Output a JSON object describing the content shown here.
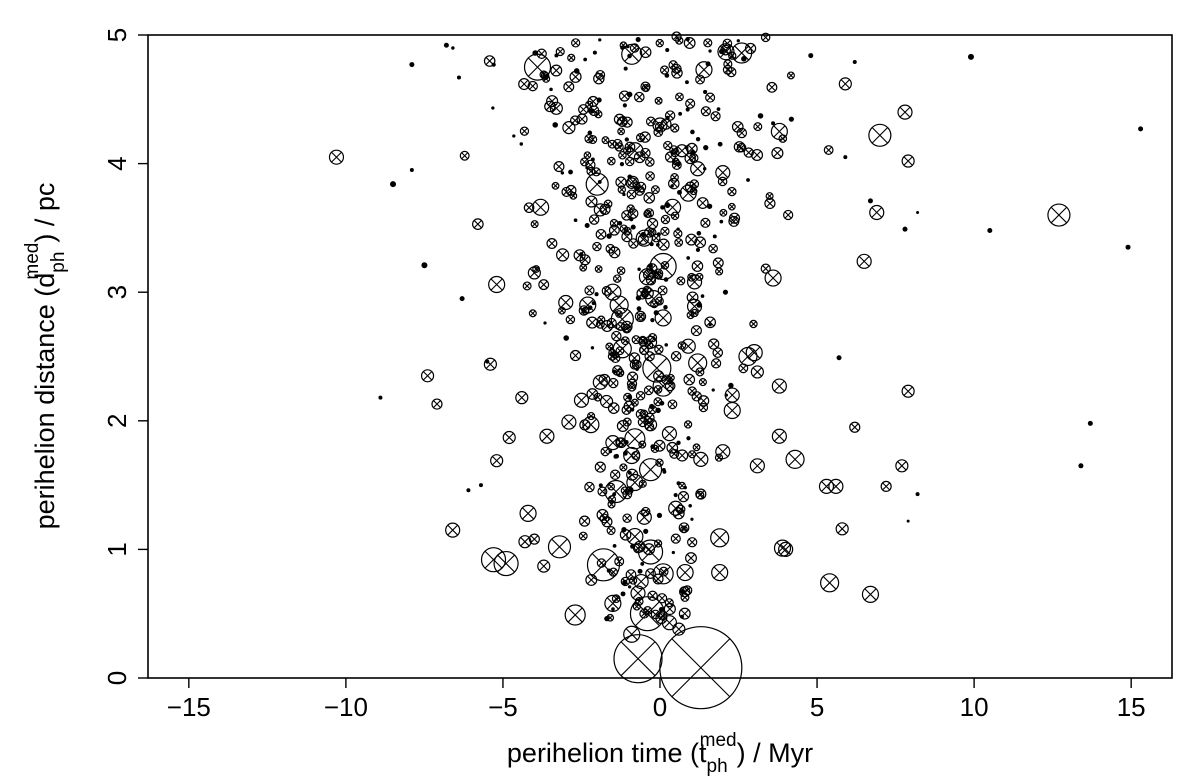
{
  "chart_data": {
    "type": "scatter",
    "title": "",
    "xlabel": {
      "pre": "perihelion time (t",
      "sup": "med",
      "sub": "ph",
      "post": ") / Myr"
    },
    "ylabel": {
      "pre": "perihelion distance (d",
      "sup": "med",
      "sub": "ph",
      "post": ") / pc"
    },
    "xlim": [
      -16.3,
      16.3
    ],
    "ylim": [
      0,
      5
    ],
    "xticks": [
      -15,
      -10,
      -5,
      0,
      5,
      10,
      15
    ],
    "yticks": [
      0,
      1,
      2,
      3,
      4,
      5
    ],
    "xtick_labels": [
      "−15",
      "−10",
      "−5",
      "0",
      "5",
      "10",
      "15"
    ],
    "ytick_labels": [
      "0",
      "1",
      "2",
      "3",
      "4",
      "5"
    ],
    "grid": false,
    "legend": "none",
    "marker": "circle-with-x",
    "color": "#000000",
    "points": [
      {
        "x": 1.3,
        "y": 0.08,
        "s": 41
      },
      {
        "x": -0.7,
        "y": 0.15,
        "s": 24
      },
      {
        "x": -0.4,
        "y": 0.5,
        "s": 17
      },
      {
        "x": 0.3,
        "y": 0.43,
        "s": 7
      },
      {
        "x": 0.6,
        "y": 0.38,
        "s": 6
      },
      {
        "x": -0.9,
        "y": 0.34,
        "s": 8
      },
      {
        "x": -2.7,
        "y": 0.49,
        "s": 10
      },
      {
        "x": -1.5,
        "y": 0.58,
        "s": 8
      },
      {
        "x": -0.7,
        "y": 0.66,
        "s": 7
      },
      {
        "x": -0.6,
        "y": 0.75,
        "s": 7
      },
      {
        "x": 0.1,
        "y": 0.81,
        "s": 10
      },
      {
        "x": 0.8,
        "y": 0.82,
        "s": 8
      },
      {
        "x": 1.9,
        "y": 0.82,
        "s": 8
      },
      {
        "x": 5.4,
        "y": 0.74,
        "s": 9
      },
      {
        "x": 6.7,
        "y": 0.65,
        "s": 8
      },
      {
        "x": -5.3,
        "y": 0.92,
        "s": 12
      },
      {
        "x": -4.9,
        "y": 0.89,
        "s": 12
      },
      {
        "x": -1.8,
        "y": 0.88,
        "s": 16
      },
      {
        "x": -3.2,
        "y": 1.02,
        "s": 11
      },
      {
        "x": -0.3,
        "y": 0.98,
        "s": 12
      },
      {
        "x": -0.8,
        "y": 1.1,
        "s": 8
      },
      {
        "x": 1.9,
        "y": 1.09,
        "s": 9
      },
      {
        "x": 3.9,
        "y": 1.01,
        "s": 8
      },
      {
        "x": 4.0,
        "y": 1.0,
        "s": 7
      },
      {
        "x": -6.6,
        "y": 1.15,
        "s": 7
      },
      {
        "x": -4.3,
        "y": 1.06,
        "s": 6
      },
      {
        "x": -4.0,
        "y": 1.08,
        "s": 5
      },
      {
        "x": -3.7,
        "y": 0.87,
        "s": 6
      },
      {
        "x": -4.2,
        "y": 1.28,
        "s": 8
      },
      {
        "x": 5.8,
        "y": 1.16,
        "s": 6
      },
      {
        "x": -1.4,
        "y": 1.45,
        "s": 11
      },
      {
        "x": -0.8,
        "y": 1.52,
        "s": 8
      },
      {
        "x": -0.3,
        "y": 1.62,
        "s": 11
      },
      {
        "x": -5.2,
        "y": 1.69,
        "s": 6
      },
      {
        "x": -4.8,
        "y": 1.87,
        "s": 6
      },
      {
        "x": -3.6,
        "y": 1.88,
        "s": 7
      },
      {
        "x": -2.9,
        "y": 1.99,
        "s": 7
      },
      {
        "x": -2.2,
        "y": 1.97,
        "s": 8
      },
      {
        "x": -1.5,
        "y": 1.83,
        "s": 7
      },
      {
        "x": -0.8,
        "y": 1.86,
        "s": 10
      },
      {
        "x": -0.9,
        "y": 1.73,
        "s": 8
      },
      {
        "x": 0.3,
        "y": 1.9,
        "s": 7
      },
      {
        "x": 1.3,
        "y": 1.7,
        "s": 7
      },
      {
        "x": 2.3,
        "y": 2.08,
        "s": 8
      },
      {
        "x": 3.1,
        "y": 1.65,
        "s": 7
      },
      {
        "x": 3.8,
        "y": 1.88,
        "s": 7
      },
      {
        "x": 4.3,
        "y": 1.7,
        "s": 9
      },
      {
        "x": 5.3,
        "y": 1.49,
        "s": 7
      },
      {
        "x": 5.6,
        "y": 1.49,
        "s": 7
      },
      {
        "x": 7.2,
        "y": 1.49,
        "s": 5
      },
      {
        "x": 7.7,
        "y": 1.65,
        "s": 6
      },
      {
        "x": 7.9,
        "y": 2.23,
        "s": 6
      },
      {
        "x": 6.2,
        "y": 1.95,
        "s": 5
      },
      {
        "x": -7.4,
        "y": 2.35,
        "s": 6
      },
      {
        "x": -7.1,
        "y": 2.13,
        "s": 5
      },
      {
        "x": -5.4,
        "y": 2.44,
        "s": 6
      },
      {
        "x": -4.4,
        "y": 2.18,
        "s": 6
      },
      {
        "x": -2.5,
        "y": 2.16,
        "s": 7
      },
      {
        "x": -1.2,
        "y": 2.56,
        "s": 9
      },
      {
        "x": -0.1,
        "y": 2.41,
        "s": 14
      },
      {
        "x": 0.1,
        "y": 2.27,
        "s": 10
      },
      {
        "x": 0.9,
        "y": 2.58,
        "s": 7
      },
      {
        "x": 1.2,
        "y": 2.45,
        "s": 9
      },
      {
        "x": 2.3,
        "y": 2.2,
        "s": 7
      },
      {
        "x": 2.8,
        "y": 2.5,
        "s": 9
      },
      {
        "x": 3.0,
        "y": 2.53,
        "s": 8
      },
      {
        "x": 3.8,
        "y": 2.27,
        "s": 7
      },
      {
        "x": -5.2,
        "y": 3.06,
        "s": 8
      },
      {
        "x": -3.0,
        "y": 2.92,
        "s": 7
      },
      {
        "x": -2.3,
        "y": 2.9,
        "s": 8
      },
      {
        "x": -1.2,
        "y": 2.79,
        "s": 11
      },
      {
        "x": -1.3,
        "y": 2.9,
        "s": 9
      },
      {
        "x": -0.2,
        "y": 2.95,
        "s": 8
      },
      {
        "x": 0.1,
        "y": 2.8,
        "s": 8
      },
      {
        "x": 1.1,
        "y": 2.89,
        "s": 7
      },
      {
        "x": 0.1,
        "y": 3.2,
        "s": 13
      },
      {
        "x": -0.4,
        "y": 3.12,
        "s": 8
      },
      {
        "x": -0.5,
        "y": 3.42,
        "s": 8
      },
      {
        "x": -1.5,
        "y": 3.0,
        "s": 8
      },
      {
        "x": 3.6,
        "y": 3.11,
        "s": 8
      },
      {
        "x": 6.5,
        "y": 3.24,
        "s": 7
      },
      {
        "x": 12.7,
        "y": 3.6,
        "s": 11
      },
      {
        "x": 6.9,
        "y": 3.62,
        "s": 7
      },
      {
        "x": 0.4,
        "y": 3.66,
        "s": 8
      },
      {
        "x": 0.9,
        "y": 3.77,
        "s": 8
      },
      {
        "x": -3.8,
        "y": 3.66,
        "s": 8
      },
      {
        "x": -2.0,
        "y": 3.84,
        "s": 11
      },
      {
        "x": -1.9,
        "y": 3.64,
        "s": 6
      },
      {
        "x": -3.1,
        "y": 3.29,
        "s": 6
      },
      {
        "x": -10.3,
        "y": 4.05,
        "s": 7
      },
      {
        "x": -0.8,
        "y": 4.1,
        "s": 8
      },
      {
        "x": 0.0,
        "y": 4.3,
        "s": 7
      },
      {
        "x": 1.2,
        "y": 3.96,
        "s": 7
      },
      {
        "x": 2.0,
        "y": 3.93,
        "s": 7
      },
      {
        "x": 3.8,
        "y": 4.25,
        "s": 8
      },
      {
        "x": 7.0,
        "y": 4.22,
        "s": 11
      },
      {
        "x": 7.8,
        "y": 4.4,
        "s": 7
      },
      {
        "x": 7.9,
        "y": 4.02,
        "s": 6
      },
      {
        "x": -3.9,
        "y": 4.75,
        "s": 13
      },
      {
        "x": -0.9,
        "y": 4.85,
        "s": 10
      },
      {
        "x": 1.4,
        "y": 4.73,
        "s": 8
      },
      {
        "x": 2.1,
        "y": 4.87,
        "s": 8
      },
      {
        "x": 2.6,
        "y": 4.86,
        "s": 10
      },
      {
        "x": 5.9,
        "y": 4.62,
        "s": 6
      },
      {
        "x": -0.5,
        "y": 1.25,
        "s": 7
      },
      {
        "x": 0.5,
        "y": 1.32,
        "s": 7
      },
      {
        "x": 2.0,
        "y": 1.76,
        "s": 7
      },
      {
        "x": -1.9,
        "y": 2.3,
        "s": 7
      },
      {
        "x": 1.1,
        "y": 3.08,
        "s": 7
      },
      {
        "x": -4.0,
        "y": 3.15,
        "s": 6
      },
      {
        "x": 3.1,
        "y": 2.38,
        "s": 6
      },
      {
        "x": -1.7,
        "y": 2.15,
        "s": 6
      },
      {
        "x": -0.3,
        "y": 2.61,
        "s": 6
      },
      {
        "x": 0.7,
        "y": 4.1,
        "s": 6
      },
      {
        "x": -3.3,
        "y": 4.43,
        "s": 6
      },
      {
        "x": -2.9,
        "y": 4.28,
        "s": 6
      },
      {
        "x": 3.5,
        "y": 3.69,
        "s": 5
      },
      {
        "x": -0.3,
        "y": 1.97,
        "s": 6
      },
      {
        "x": -2.4,
        "y": 1.22,
        "s": 5
      },
      {
        "x": 1.3,
        "y": 1.43,
        "s": 5
      },
      {
        "x": -1.9,
        "y": 1.64,
        "s": 5
      },
      {
        "x": -5.7,
        "y": 1.5,
        "s": 2
      },
      {
        "x": -6.1,
        "y": 1.46,
        "s": 2
      },
      {
        "x": -8.9,
        "y": 2.18,
        "s": 2
      },
      {
        "x": -8.5,
        "y": 3.84,
        "s": 3
      },
      {
        "x": -7.5,
        "y": 3.21,
        "s": 3
      },
      {
        "x": 10.5,
        "y": 3.48,
        "s": 2.5
      },
      {
        "x": 14.9,
        "y": 3.35,
        "s": 2.5
      },
      {
        "x": 13.4,
        "y": 1.65,
        "s": 2.5
      },
      {
        "x": 13.7,
        "y": 1.98,
        "s": 2.5
      },
      {
        "x": 15.3,
        "y": 4.27,
        "s": 2.5
      },
      {
        "x": 9.9,
        "y": 4.83,
        "s": 3
      },
      {
        "x": 8.2,
        "y": 3.62,
        "s": 1.5
      },
      {
        "x": 8.2,
        "y": 1.43,
        "s": 2
      },
      {
        "x": 7.9,
        "y": 1.22,
        "s": 1.5
      },
      {
        "x": -7.9,
        "y": 4.77,
        "s": 2.5
      },
      {
        "x": -6.8,
        "y": 4.92,
        "s": 2.5
      },
      {
        "x": -6.4,
        "y": 4.67,
        "s": 2
      },
      {
        "x": -7.9,
        "y": 3.95,
        "s": 2
      },
      {
        "x": -6.3,
        "y": 2.95,
        "s": 2.5
      },
      {
        "x": -5.5,
        "y": 2.46,
        "s": 2
      },
      {
        "x": 7.8,
        "y": 3.49,
        "s": 2.5
      },
      {
        "x": 5.7,
        "y": 2.49,
        "s": 2.5
      },
      {
        "x": 4.8,
        "y": 4.84,
        "s": 2.5
      },
      {
        "x": 6.2,
        "y": 4.79,
        "s": 2
      },
      {
        "x": 6.7,
        "y": 3.71,
        "s": 2.5
      },
      {
        "x": 5.9,
        "y": 4.05,
        "s": 2
      }
    ],
    "cloud_seed": 7331,
    "cloud_count": 560
  }
}
